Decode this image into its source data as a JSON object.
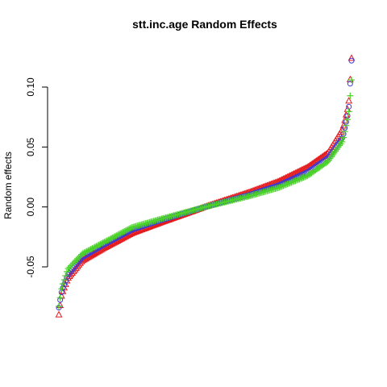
{
  "chart_data": {
    "type": "scatter",
    "title": "stt.inc.age Random Effects",
    "xlabel": "",
    "ylabel": "Random effects",
    "ylim": [
      -0.092,
      0.127
    ],
    "xlim": [
      0,
      1
    ],
    "yticks": [
      -0.05,
      0.0,
      0.05,
      0.1
    ],
    "ytick_labels": [
      "-0.05",
      "0.00",
      "0.05",
      "0.10"
    ],
    "x_axis_visible": false,
    "grid": false,
    "legend": "none",
    "n_points_per_series": 220,
    "series": [
      {
        "marker": "triangle",
        "color": "#e41a1c",
        "quantiles": [
          [
            0.0,
            -0.09
          ],
          [
            0.01,
            -0.073
          ],
          [
            0.03,
            -0.06
          ],
          [
            0.08,
            -0.045
          ],
          [
            0.15,
            -0.035
          ],
          [
            0.25,
            -0.022
          ],
          [
            0.35,
            -0.013
          ],
          [
            0.5,
            0.0
          ],
          [
            0.65,
            0.012
          ],
          [
            0.75,
            0.021
          ],
          [
            0.85,
            0.033
          ],
          [
            0.92,
            0.045
          ],
          [
            0.97,
            0.065
          ],
          [
            0.99,
            0.085
          ],
          [
            1.0,
            0.124
          ]
        ]
      },
      {
        "marker": "circle",
        "color": "#3b3bd6",
        "quantiles": [
          [
            0.0,
            -0.084
          ],
          [
            0.01,
            -0.07
          ],
          [
            0.03,
            -0.057
          ],
          [
            0.08,
            -0.042
          ],
          [
            0.15,
            -0.032
          ],
          [
            0.25,
            -0.019
          ],
          [
            0.35,
            -0.011
          ],
          [
            0.5,
            0.0
          ],
          [
            0.65,
            0.01
          ],
          [
            0.75,
            0.018
          ],
          [
            0.85,
            0.029
          ],
          [
            0.92,
            0.041
          ],
          [
            0.97,
            0.058
          ],
          [
            0.99,
            0.08
          ],
          [
            1.0,
            0.122
          ]
        ]
      },
      {
        "marker": "plus",
        "color": "#4cd12a",
        "quantiles": [
          [
            0.0,
            -0.083
          ],
          [
            0.01,
            -0.067
          ],
          [
            0.03,
            -0.052
          ],
          [
            0.08,
            -0.039
          ],
          [
            0.15,
            -0.03
          ],
          [
            0.25,
            -0.017
          ],
          [
            0.35,
            -0.01
          ],
          [
            0.5,
            0.0
          ],
          [
            0.65,
            0.009
          ],
          [
            0.75,
            0.016
          ],
          [
            0.85,
            0.026
          ],
          [
            0.92,
            0.038
          ],
          [
            0.97,
            0.055
          ],
          [
            0.99,
            0.077
          ],
          [
            1.0,
            0.106
          ]
        ]
      }
    ]
  }
}
